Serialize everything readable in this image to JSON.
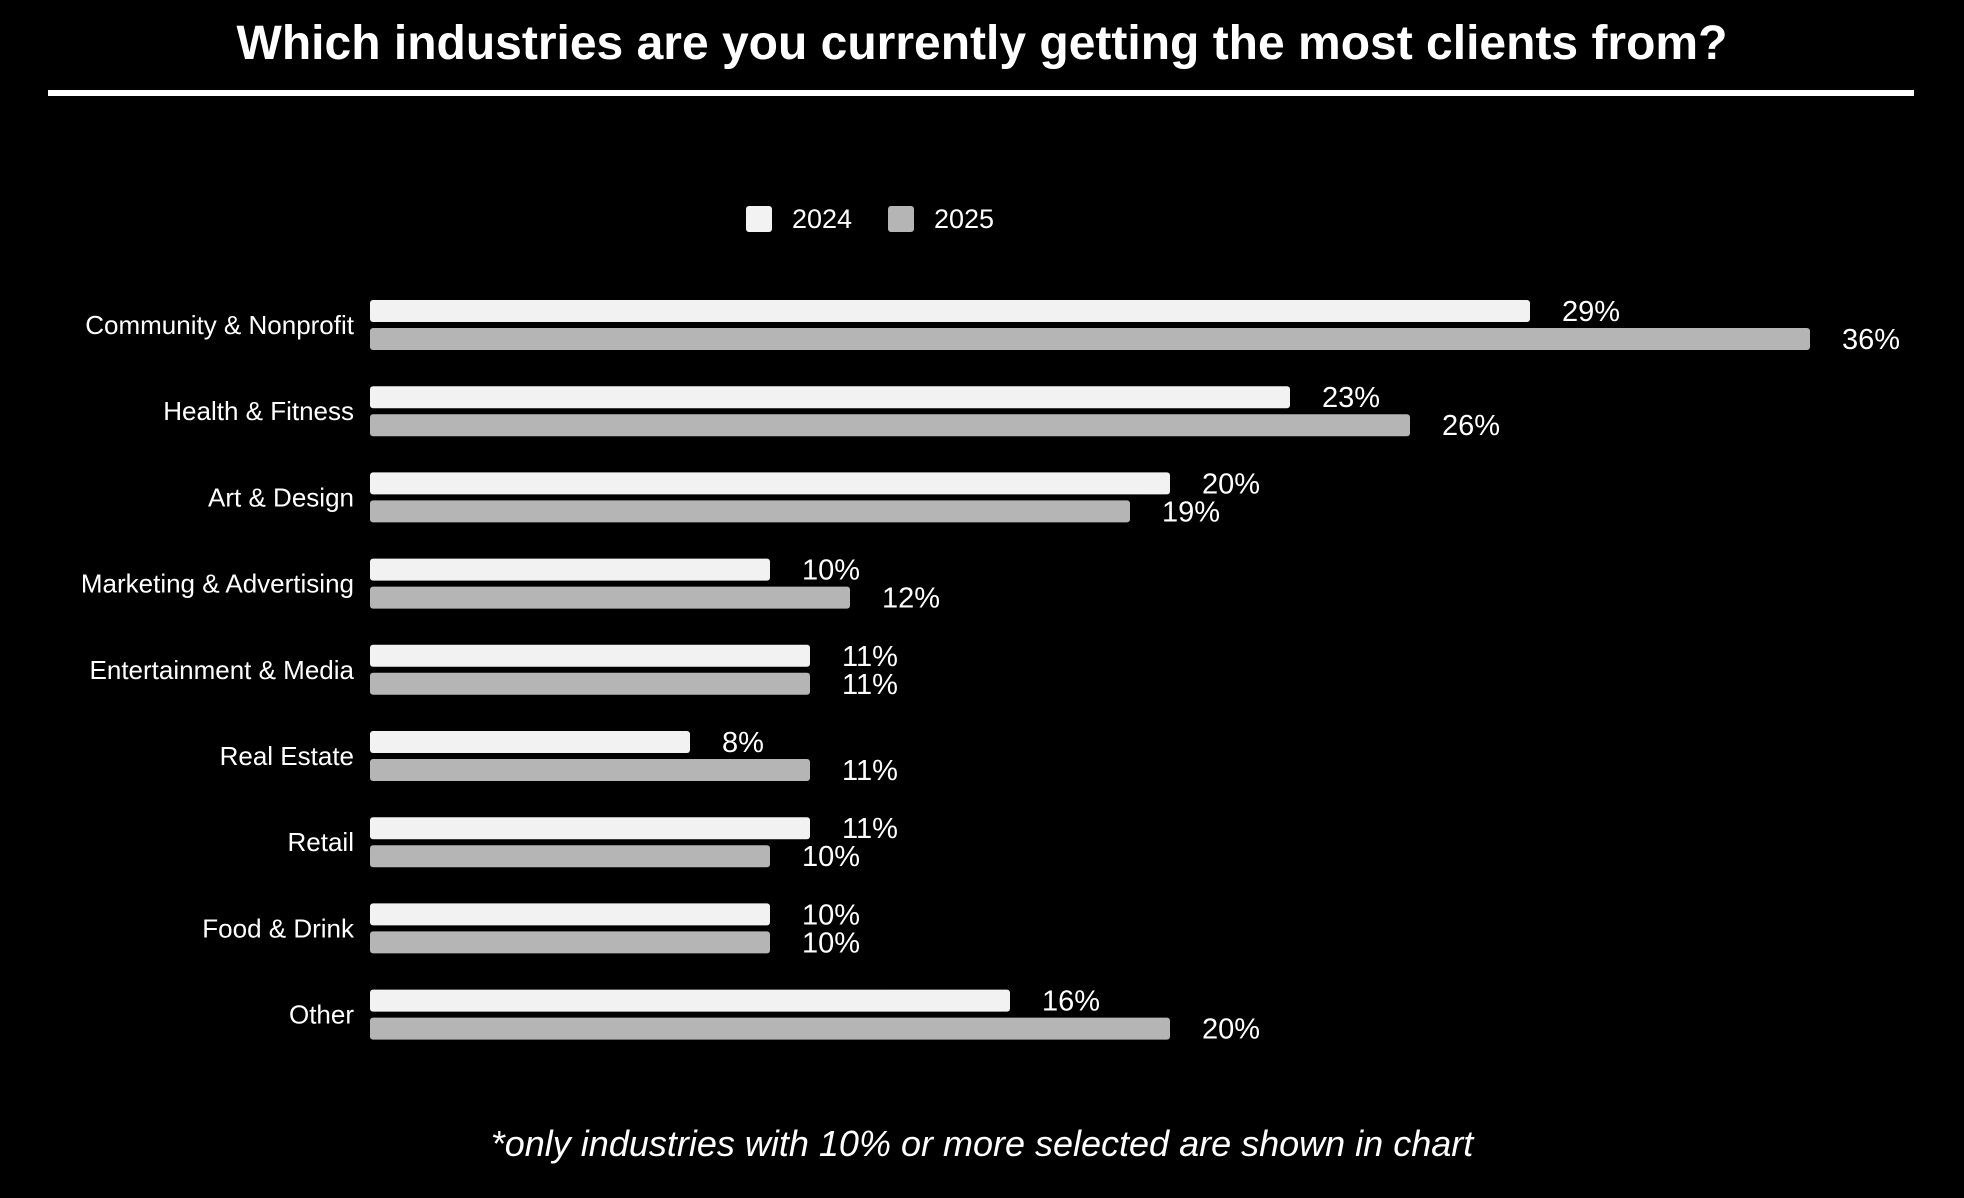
{
  "chart_data": {
    "type": "bar",
    "orientation": "horizontal",
    "title": "Which industries are you currently getting the most clients from?",
    "footnote": "*only industries with 10% or more selected are shown in chart",
    "categories": [
      "Community & Nonprofit",
      "Health & Fitness",
      "Art & Design",
      "Marketing & Advertising",
      "Entertainment & Media",
      "Real Estate",
      "Retail",
      "Food & Drink",
      "Other"
    ],
    "series": [
      {
        "name": "2024",
        "color": "#f2f2f2",
        "values": [
          29,
          23,
          20,
          10,
          11,
          8,
          11,
          10,
          16
        ],
        "labels": [
          "29%",
          "23%",
          "20%",
          "10%",
          "11%",
          "8%",
          "11%",
          "10%",
          "16%"
        ]
      },
      {
        "name": "2025",
        "color": "#b5b5b5",
        "values": [
          36,
          26,
          19,
          12,
          11,
          11,
          10,
          10,
          20
        ],
        "labels": [
          "36%",
          "26%",
          "19%",
          "12%",
          "11%",
          "11%",
          "10%",
          "10%",
          "20%"
        ]
      }
    ],
    "legend_position": "top-center",
    "grid": false,
    "xlim": [
      0,
      36
    ],
    "background": "#000000"
  }
}
